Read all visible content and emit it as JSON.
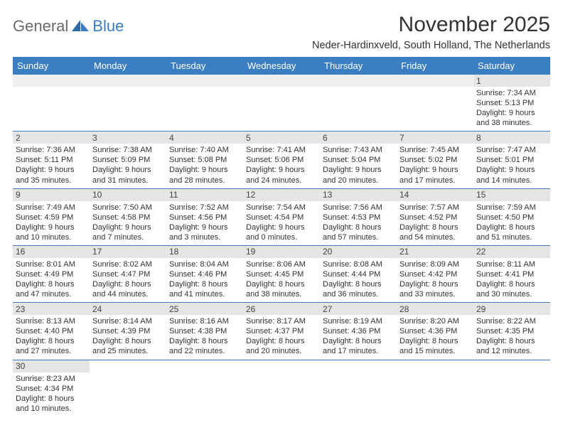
{
  "logo": {
    "part1": "General",
    "part2": "Blue"
  },
  "title": "November 2025",
  "subtitle": "Neder-Hardinxveld, South Holland, The Netherlands",
  "colors": {
    "header_bg": "#3b7ec2",
    "header_text": "#ffffff",
    "daynum_bg": "#e5e5e5",
    "border": "#3b7ec2",
    "logo_gray": "#6b6b6b",
    "logo_blue": "#3b7ec2"
  },
  "weekdays": [
    "Sunday",
    "Monday",
    "Tuesday",
    "Wednesday",
    "Thursday",
    "Friday",
    "Saturday"
  ],
  "weeks": [
    [
      {
        "blank": true
      },
      {
        "blank": true
      },
      {
        "blank": true
      },
      {
        "blank": true
      },
      {
        "blank": true
      },
      {
        "blank": true
      },
      {
        "n": "1",
        "sr": "Sunrise: 7:34 AM",
        "ss": "Sunset: 5:13 PM",
        "d1": "Daylight: 9 hours",
        "d2": "and 38 minutes."
      }
    ],
    [
      {
        "n": "2",
        "sr": "Sunrise: 7:36 AM",
        "ss": "Sunset: 5:11 PM",
        "d1": "Daylight: 9 hours",
        "d2": "and 35 minutes."
      },
      {
        "n": "3",
        "sr": "Sunrise: 7:38 AM",
        "ss": "Sunset: 5:09 PM",
        "d1": "Daylight: 9 hours",
        "d2": "and 31 minutes."
      },
      {
        "n": "4",
        "sr": "Sunrise: 7:40 AM",
        "ss": "Sunset: 5:08 PM",
        "d1": "Daylight: 9 hours",
        "d2": "and 28 minutes."
      },
      {
        "n": "5",
        "sr": "Sunrise: 7:41 AM",
        "ss": "Sunset: 5:06 PM",
        "d1": "Daylight: 9 hours",
        "d2": "and 24 minutes."
      },
      {
        "n": "6",
        "sr": "Sunrise: 7:43 AM",
        "ss": "Sunset: 5:04 PM",
        "d1": "Daylight: 9 hours",
        "d2": "and 20 minutes."
      },
      {
        "n": "7",
        "sr": "Sunrise: 7:45 AM",
        "ss": "Sunset: 5:02 PM",
        "d1": "Daylight: 9 hours",
        "d2": "and 17 minutes."
      },
      {
        "n": "8",
        "sr": "Sunrise: 7:47 AM",
        "ss": "Sunset: 5:01 PM",
        "d1": "Daylight: 9 hours",
        "d2": "and 14 minutes."
      }
    ],
    [
      {
        "n": "9",
        "sr": "Sunrise: 7:49 AM",
        "ss": "Sunset: 4:59 PM",
        "d1": "Daylight: 9 hours",
        "d2": "and 10 minutes."
      },
      {
        "n": "10",
        "sr": "Sunrise: 7:50 AM",
        "ss": "Sunset: 4:58 PM",
        "d1": "Daylight: 9 hours",
        "d2": "and 7 minutes."
      },
      {
        "n": "11",
        "sr": "Sunrise: 7:52 AM",
        "ss": "Sunset: 4:56 PM",
        "d1": "Daylight: 9 hours",
        "d2": "and 3 minutes."
      },
      {
        "n": "12",
        "sr": "Sunrise: 7:54 AM",
        "ss": "Sunset: 4:54 PM",
        "d1": "Daylight: 9 hours",
        "d2": "and 0 minutes."
      },
      {
        "n": "13",
        "sr": "Sunrise: 7:56 AM",
        "ss": "Sunset: 4:53 PM",
        "d1": "Daylight: 8 hours",
        "d2": "and 57 minutes."
      },
      {
        "n": "14",
        "sr": "Sunrise: 7:57 AM",
        "ss": "Sunset: 4:52 PM",
        "d1": "Daylight: 8 hours",
        "d2": "and 54 minutes."
      },
      {
        "n": "15",
        "sr": "Sunrise: 7:59 AM",
        "ss": "Sunset: 4:50 PM",
        "d1": "Daylight: 8 hours",
        "d2": "and 51 minutes."
      }
    ],
    [
      {
        "n": "16",
        "sr": "Sunrise: 8:01 AM",
        "ss": "Sunset: 4:49 PM",
        "d1": "Daylight: 8 hours",
        "d2": "and 47 minutes."
      },
      {
        "n": "17",
        "sr": "Sunrise: 8:02 AM",
        "ss": "Sunset: 4:47 PM",
        "d1": "Daylight: 8 hours",
        "d2": "and 44 minutes."
      },
      {
        "n": "18",
        "sr": "Sunrise: 8:04 AM",
        "ss": "Sunset: 4:46 PM",
        "d1": "Daylight: 8 hours",
        "d2": "and 41 minutes."
      },
      {
        "n": "19",
        "sr": "Sunrise: 8:06 AM",
        "ss": "Sunset: 4:45 PM",
        "d1": "Daylight: 8 hours",
        "d2": "and 38 minutes."
      },
      {
        "n": "20",
        "sr": "Sunrise: 8:08 AM",
        "ss": "Sunset: 4:44 PM",
        "d1": "Daylight: 8 hours",
        "d2": "and 36 minutes."
      },
      {
        "n": "21",
        "sr": "Sunrise: 8:09 AM",
        "ss": "Sunset: 4:42 PM",
        "d1": "Daylight: 8 hours",
        "d2": "and 33 minutes."
      },
      {
        "n": "22",
        "sr": "Sunrise: 8:11 AM",
        "ss": "Sunset: 4:41 PM",
        "d1": "Daylight: 8 hours",
        "d2": "and 30 minutes."
      }
    ],
    [
      {
        "n": "23",
        "sr": "Sunrise: 8:13 AM",
        "ss": "Sunset: 4:40 PM",
        "d1": "Daylight: 8 hours",
        "d2": "and 27 minutes."
      },
      {
        "n": "24",
        "sr": "Sunrise: 8:14 AM",
        "ss": "Sunset: 4:39 PM",
        "d1": "Daylight: 8 hours",
        "d2": "and 25 minutes."
      },
      {
        "n": "25",
        "sr": "Sunrise: 8:16 AM",
        "ss": "Sunset: 4:38 PM",
        "d1": "Daylight: 8 hours",
        "d2": "and 22 minutes."
      },
      {
        "n": "26",
        "sr": "Sunrise: 8:17 AM",
        "ss": "Sunset: 4:37 PM",
        "d1": "Daylight: 8 hours",
        "d2": "and 20 minutes."
      },
      {
        "n": "27",
        "sr": "Sunrise: 8:19 AM",
        "ss": "Sunset: 4:36 PM",
        "d1": "Daylight: 8 hours",
        "d2": "and 17 minutes."
      },
      {
        "n": "28",
        "sr": "Sunrise: 8:20 AM",
        "ss": "Sunset: 4:36 PM",
        "d1": "Daylight: 8 hours",
        "d2": "and 15 minutes."
      },
      {
        "n": "29",
        "sr": "Sunrise: 8:22 AM",
        "ss": "Sunset: 4:35 PM",
        "d1": "Daylight: 8 hours",
        "d2": "and 12 minutes."
      }
    ],
    [
      {
        "n": "30",
        "sr": "Sunrise: 8:23 AM",
        "ss": "Sunset: 4:34 PM",
        "d1": "Daylight: 8 hours",
        "d2": "and 10 minutes."
      },
      {
        "nodate": true
      },
      {
        "nodate": true
      },
      {
        "nodate": true
      },
      {
        "nodate": true
      },
      {
        "nodate": true
      },
      {
        "nodate": true
      }
    ]
  ]
}
